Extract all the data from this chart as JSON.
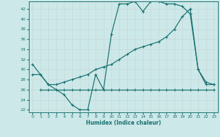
{
  "xlabel": "Humidex (Indice chaleur)",
  "ylabel": "",
  "bg_color": "#cce8e8",
  "grid_color": "#d4e8e8",
  "line_color": "#1a7070",
  "xlim": [
    -0.5,
    23.5
  ],
  "ylim": [
    21.5,
    43.5
  ],
  "yticks": [
    22,
    24,
    26,
    28,
    30,
    32,
    34,
    36,
    38,
    40,
    42
  ],
  "xticks": [
    0,
    1,
    2,
    3,
    4,
    5,
    6,
    7,
    8,
    9,
    10,
    11,
    12,
    13,
    14,
    15,
    16,
    17,
    18,
    19,
    20,
    21,
    22,
    23
  ],
  "line1_x": [
    0,
    1,
    2,
    3,
    4,
    5,
    6,
    7,
    8,
    9,
    10,
    11,
    12,
    13,
    14,
    15,
    16,
    17,
    18,
    19,
    20,
    21,
    22,
    23
  ],
  "line1_y": [
    31,
    29,
    27,
    26,
    25,
    23,
    22,
    22,
    29,
    26,
    37,
    43,
    43,
    43.5,
    41.5,
    43.5,
    43.5,
    43,
    43,
    42.5,
    41,
    30,
    27,
    27
  ],
  "line2_x": [
    1,
    2,
    3,
    4,
    5,
    6,
    7,
    8,
    9,
    10,
    11,
    12,
    13,
    14,
    15,
    16,
    17,
    18,
    19,
    20,
    21,
    22,
    23
  ],
  "line2_y": [
    26,
    26,
    26,
    26,
    26,
    26,
    26,
    26,
    26,
    26,
    26,
    26,
    26,
    26,
    26,
    26,
    26,
    26,
    26,
    26,
    26,
    26,
    26
  ],
  "line3_x": [
    0,
    1,
    2,
    3,
    4,
    5,
    6,
    7,
    8,
    9,
    10,
    11,
    12,
    13,
    14,
    15,
    16,
    17,
    18,
    19,
    20,
    21,
    22,
    23
  ],
  "line3_y": [
    29,
    29,
    27,
    27,
    27.5,
    28,
    28.5,
    29,
    30,
    30.5,
    31,
    32,
    33,
    34,
    34.5,
    35,
    35.5,
    36.5,
    38,
    40.5,
    42,
    30,
    27.5,
    27
  ]
}
